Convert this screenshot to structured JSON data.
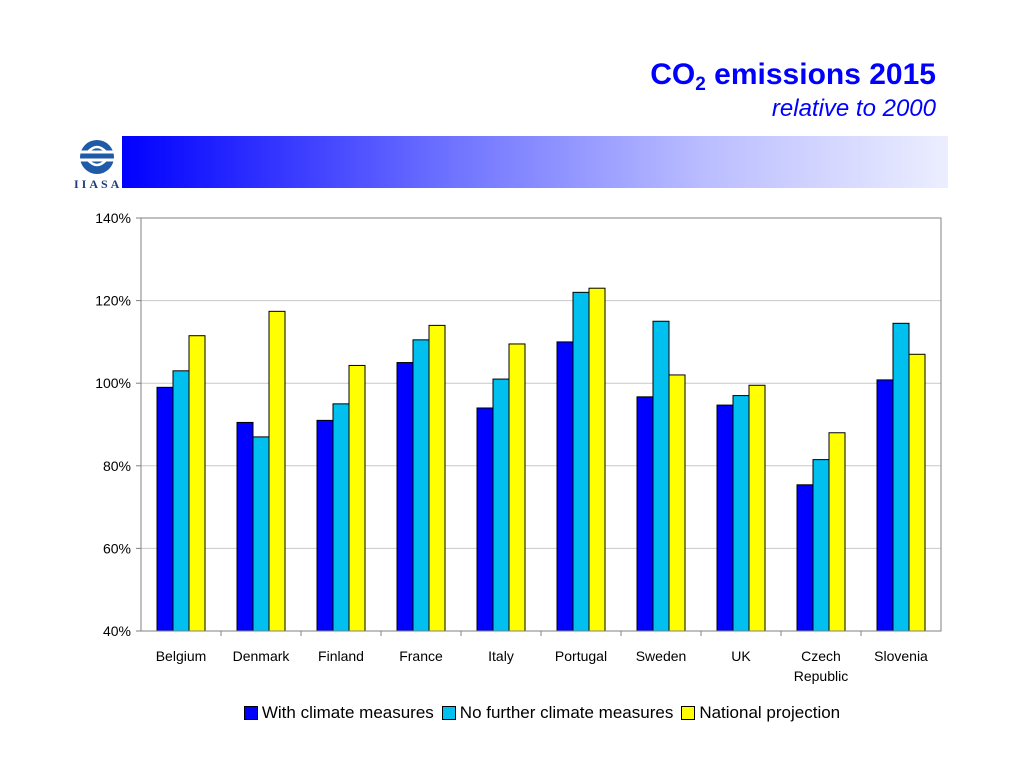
{
  "header": {
    "title_main": "CO",
    "title_sub": "2",
    "title_rest": " emissions 2015",
    "subtitle": "relative to 2000"
  },
  "logo": {
    "text": "IIASA",
    "icon": "iiasa-globe-icon"
  },
  "chart_data": {
    "type": "bar",
    "title": "CO2 emissions 2015",
    "subtitle": "relative to 2000",
    "categories": [
      "Belgium",
      "Denmark",
      "Finland",
      "France",
      "Italy",
      "Portugal",
      "Sweden",
      "UK",
      "Czech Republic",
      "Slovenia"
    ],
    "category_lines": [
      [
        "Belgium"
      ],
      [
        "Denmark"
      ],
      [
        "Finland"
      ],
      [
        "France"
      ],
      [
        "Italy"
      ],
      [
        "Portugal"
      ],
      [
        "Sweden"
      ],
      [
        "UK"
      ],
      [
        "Czech",
        "Republic"
      ],
      [
        "Slovenia"
      ]
    ],
    "series": [
      {
        "name": "With climate measures",
        "color": "#0000ff",
        "values": [
          99,
          90.5,
          91,
          105,
          94,
          110,
          96.7,
          94.7,
          75.4,
          100.8
        ]
      },
      {
        "name": "No further climate measures",
        "color": "#00c0f0",
        "values": [
          103,
          87,
          95,
          110.5,
          101,
          122,
          115,
          97,
          81.5,
          114.5
        ]
      },
      {
        "name": "National projection",
        "color": "#ffff00",
        "values": [
          111.5,
          117.4,
          104.3,
          114,
          109.5,
          123,
          102,
          99.5,
          88,
          107
        ]
      }
    ],
    "yticks": [
      "40%",
      "60%",
      "80%",
      "100%",
      "120%",
      "140%"
    ],
    "ylim": [
      40,
      140
    ],
    "grid": true,
    "legend_position": "bottom"
  }
}
